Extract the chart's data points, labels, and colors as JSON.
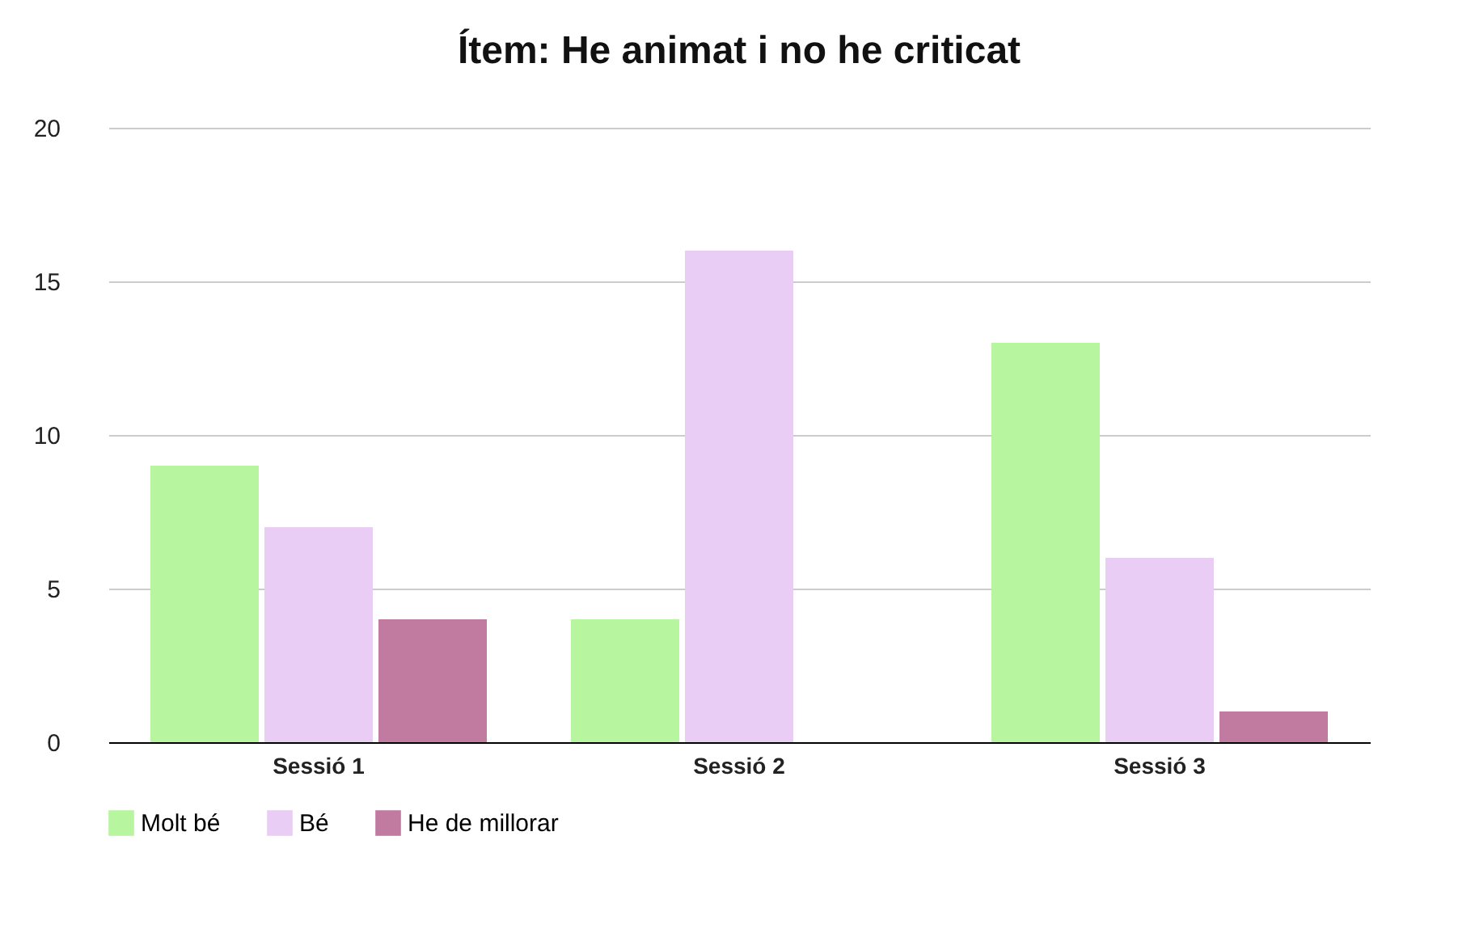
{
  "chart_data": {
    "type": "bar",
    "title": "Ítem: He animat i no he criticat",
    "categories": [
      "Sessió 1",
      "Sessió 2",
      "Sessió 3"
    ],
    "series": [
      {
        "name": "Molt bé",
        "color": "#b7f59f",
        "values": [
          9,
          4,
          13
        ]
      },
      {
        "name": "Bé",
        "color": "#eacdf4",
        "values": [
          7,
          16,
          6
        ]
      },
      {
        "name": "He de millorar",
        "color": "#c27ba0",
        "values": [
          4,
          0,
          1
        ]
      }
    ],
    "ylim": [
      0,
      20
    ],
    "yticks": [
      0,
      5,
      10,
      15,
      20
    ],
    "grid": "y",
    "legend": "bottom"
  }
}
